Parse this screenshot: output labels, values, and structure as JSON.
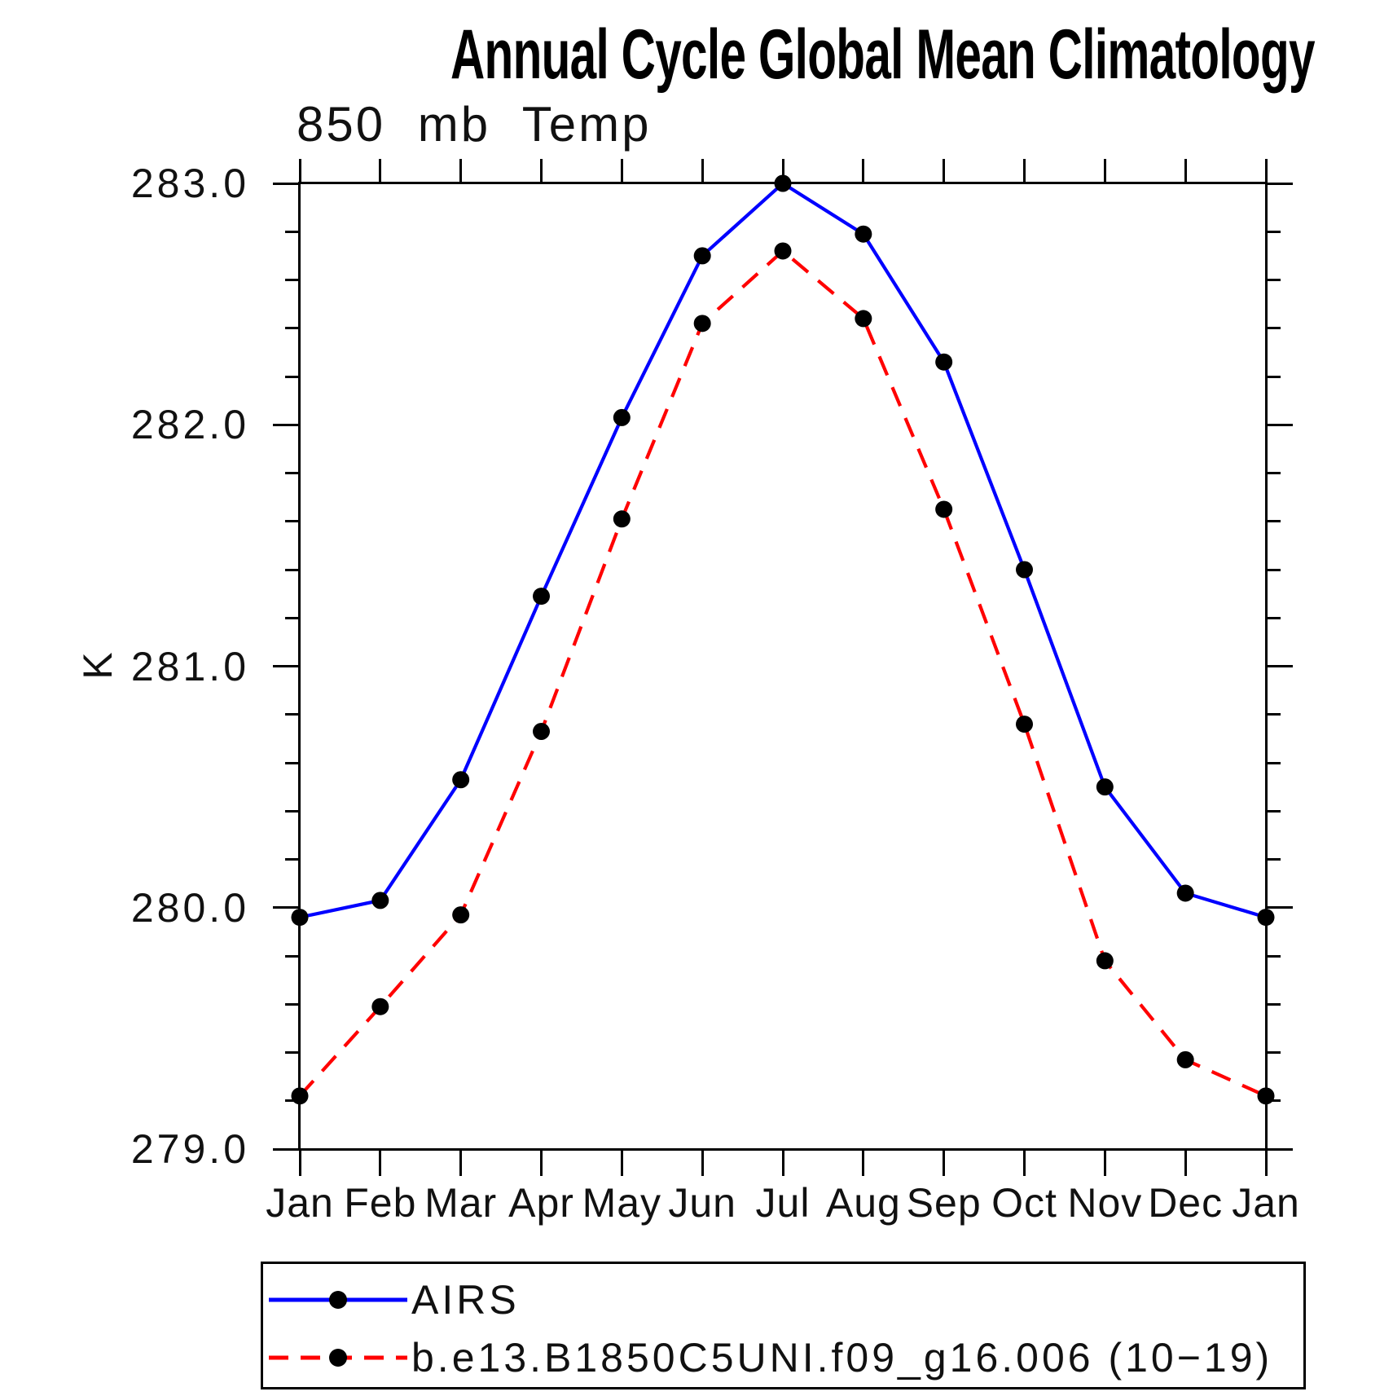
{
  "title": "Annual Cycle Global Mean Climatology",
  "subtitle": "850 mb Temp",
  "y_axis": {
    "label": "K",
    "min": 279.0,
    "max": 283.0,
    "major_tick_labels": [
      "283.0",
      "282.0",
      "281.0",
      "280.0",
      "279.0"
    ],
    "minor_step": 0.2
  },
  "x_axis": {
    "labels": [
      "Jan",
      "Feb",
      "Mar",
      "Apr",
      "May",
      "Jun",
      "Jul",
      "Aug",
      "Sep",
      "Oct",
      "Nov",
      "Dec",
      "Jan"
    ]
  },
  "chart_data": {
    "type": "line",
    "title": "Annual Cycle Global Mean Climatology",
    "subtitle": "850 mb Temp",
    "ylabel": "K",
    "ylim": [
      279.0,
      283.0
    ],
    "grid": false,
    "legend_position": "bottom",
    "categories": [
      "Jan",
      "Feb",
      "Mar",
      "Apr",
      "May",
      "Jun",
      "Jul",
      "Aug",
      "Sep",
      "Oct",
      "Nov",
      "Dec",
      "Jan"
    ],
    "series": [
      {
        "name": "AIRS",
        "color": "#0000ff",
        "line_style": "solid",
        "marker": "circle",
        "marker_color": "#000000",
        "values": [
          279.96,
          280.03,
          280.53,
          281.29,
          282.03,
          282.7,
          283.0,
          282.79,
          282.26,
          281.4,
          280.5,
          280.06,
          279.96
        ]
      },
      {
        "name": "b.e13.B1850C5UNI.f09_g16.006 (10−19)",
        "color": "#ff0000",
        "line_style": "dashed",
        "marker": "circle",
        "marker_color": "#000000",
        "values": [
          279.22,
          279.59,
          279.97,
          280.73,
          281.61,
          282.42,
          282.72,
          282.44,
          281.65,
          280.76,
          279.78,
          279.37,
          279.22
        ]
      }
    ]
  },
  "legend": {
    "items": [
      {
        "label": "AIRS"
      },
      {
        "label": "b.e13.B1850C5UNI.f09_g16.006 (10−19)"
      }
    ]
  }
}
